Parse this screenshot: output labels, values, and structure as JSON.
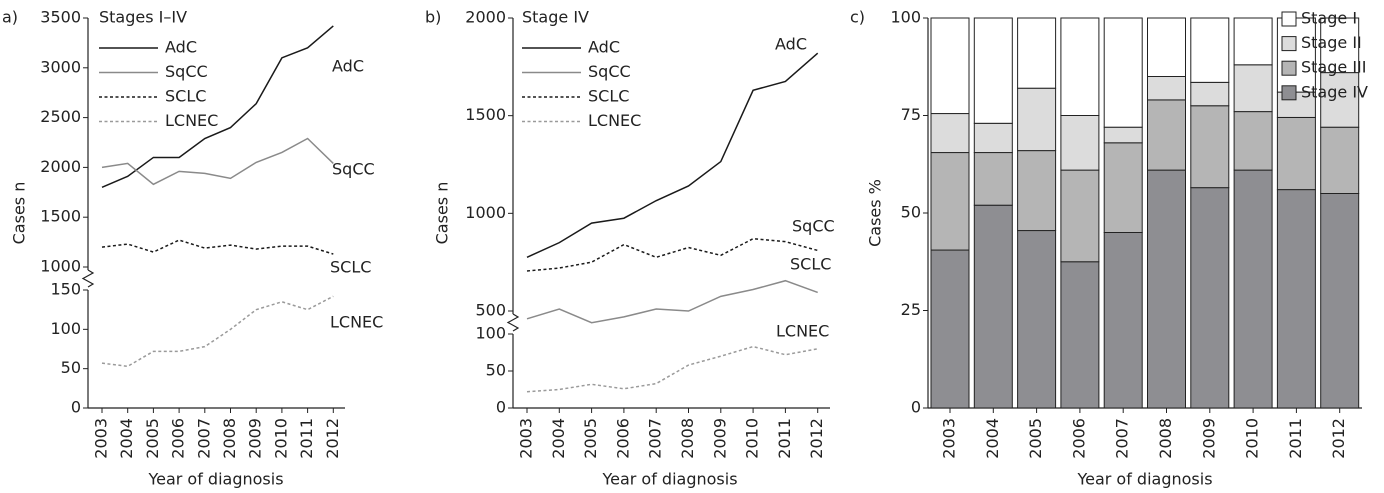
{
  "chart_data": [
    {
      "type": "line",
      "panel_label": "a)",
      "title": "Stages I–IV",
      "categories": [
        "2003",
        "2004",
        "2005",
        "2006",
        "2007",
        "2008",
        "2009",
        "2010",
        "2011",
        "2012"
      ],
      "x_label": "Year of diagnosis",
      "y_label": "Cases n",
      "ylim": [
        1000,
        3500
      ],
      "yticks": [
        1000,
        1500,
        2000,
        2500,
        3000,
        3500
      ],
      "ylim_lower": [
        0,
        150
      ],
      "yticks_lower": [
        0,
        50,
        100,
        150
      ],
      "series": [
        {
          "name": "AdC",
          "color": "#1a1a1a",
          "linestyle": "solid",
          "values": [
            1800,
            1910,
            2100,
            2100,
            2290,
            2400,
            2640,
            3100,
            3200,
            3420
          ]
        },
        {
          "name": "SqCC",
          "color": "#8a8a8a",
          "linestyle": "solid",
          "values": [
            2000,
            2040,
            1830,
            1960,
            1940,
            1890,
            2050,
            2150,
            2290,
            2040
          ]
        },
        {
          "name": "SCLC",
          "color": "#1a1a1a",
          "linestyle": "dotted",
          "values": [
            1200,
            1230,
            1150,
            1270,
            1190,
            1220,
            1180,
            1210,
            1210,
            1130
          ]
        },
        {
          "name": "LCNEC",
          "color": "#9a9a9a",
          "linestyle": "dotted",
          "axis": "lower",
          "values": [
            57,
            53,
            72,
            72,
            78,
            100,
            125,
            135,
            125,
            142
          ]
        }
      ]
    },
    {
      "type": "line",
      "panel_label": "b)",
      "title": "Stage IV",
      "categories": [
        "2003",
        "2004",
        "2005",
        "2006",
        "2007",
        "2008",
        "2009",
        "2010",
        "2011",
        "2012"
      ],
      "x_label": "Year of diagnosis",
      "y_label": "Cases n",
      "ylim": [
        500,
        2000
      ],
      "yticks": [
        500,
        1000,
        1500,
        2000
      ],
      "ylim_lower": [
        0,
        100
      ],
      "yticks_lower": [
        0,
        50,
        100
      ],
      "series": [
        {
          "name": "AdC",
          "color": "#1a1a1a",
          "linestyle": "solid",
          "values": [
            775,
            850,
            950,
            975,
            1065,
            1140,
            1265,
            1630,
            1675,
            1820
          ]
        },
        {
          "name": "SqCC",
          "color": "#8a8a8a",
          "linestyle": "solid",
          "values": [
            460,
            510,
            440,
            470,
            510,
            500,
            575,
            610,
            655,
            595
          ]
        },
        {
          "name": "SCLC",
          "color": "#1a1a1a",
          "linestyle": "dotted",
          "values": [
            705,
            720,
            750,
            840,
            775,
            825,
            785,
            870,
            855,
            810
          ]
        },
        {
          "name": "LCNEC",
          "color": "#9a9a9a",
          "linestyle": "dotted",
          "axis": "lower",
          "values": [
            22,
            25,
            32,
            26,
            33,
            58,
            70,
            83,
            72,
            80
          ]
        }
      ]
    },
    {
      "type": "bar",
      "stacked": true,
      "panel_label": "c)",
      "categories": [
        "2003",
        "2004",
        "2005",
        "2006",
        "2007",
        "2008",
        "2009",
        "2010",
        "2011",
        "2012"
      ],
      "x_label": "Year of diagnosis",
      "y_label": "Cases %",
      "ylim": [
        0,
        100
      ],
      "yticks": [
        0,
        25,
        50,
        75,
        100
      ],
      "series": [
        {
          "name": "Stage I",
          "color": "#ffffff",
          "values": [
            24.5,
            27,
            18,
            25,
            28,
            15,
            16.5,
            12,
            19,
            14
          ]
        },
        {
          "name": "Stage II",
          "color": "#dcdcdc",
          "values": [
            10,
            7.5,
            16,
            14,
            4,
            6,
            6,
            12,
            6.5,
            14
          ]
        },
        {
          "name": "Stage III",
          "color": "#b5b5b5",
          "values": [
            25,
            13.5,
            20.5,
            23.5,
            23,
            18,
            21,
            15,
            18.5,
            17
          ]
        },
        {
          "name": "Stage IV",
          "color": "#8e8e92",
          "values": [
            40.5,
            52,
            45.5,
            37.5,
            45,
            61,
            56.5,
            61,
            56,
            55
          ]
        }
      ]
    }
  ]
}
